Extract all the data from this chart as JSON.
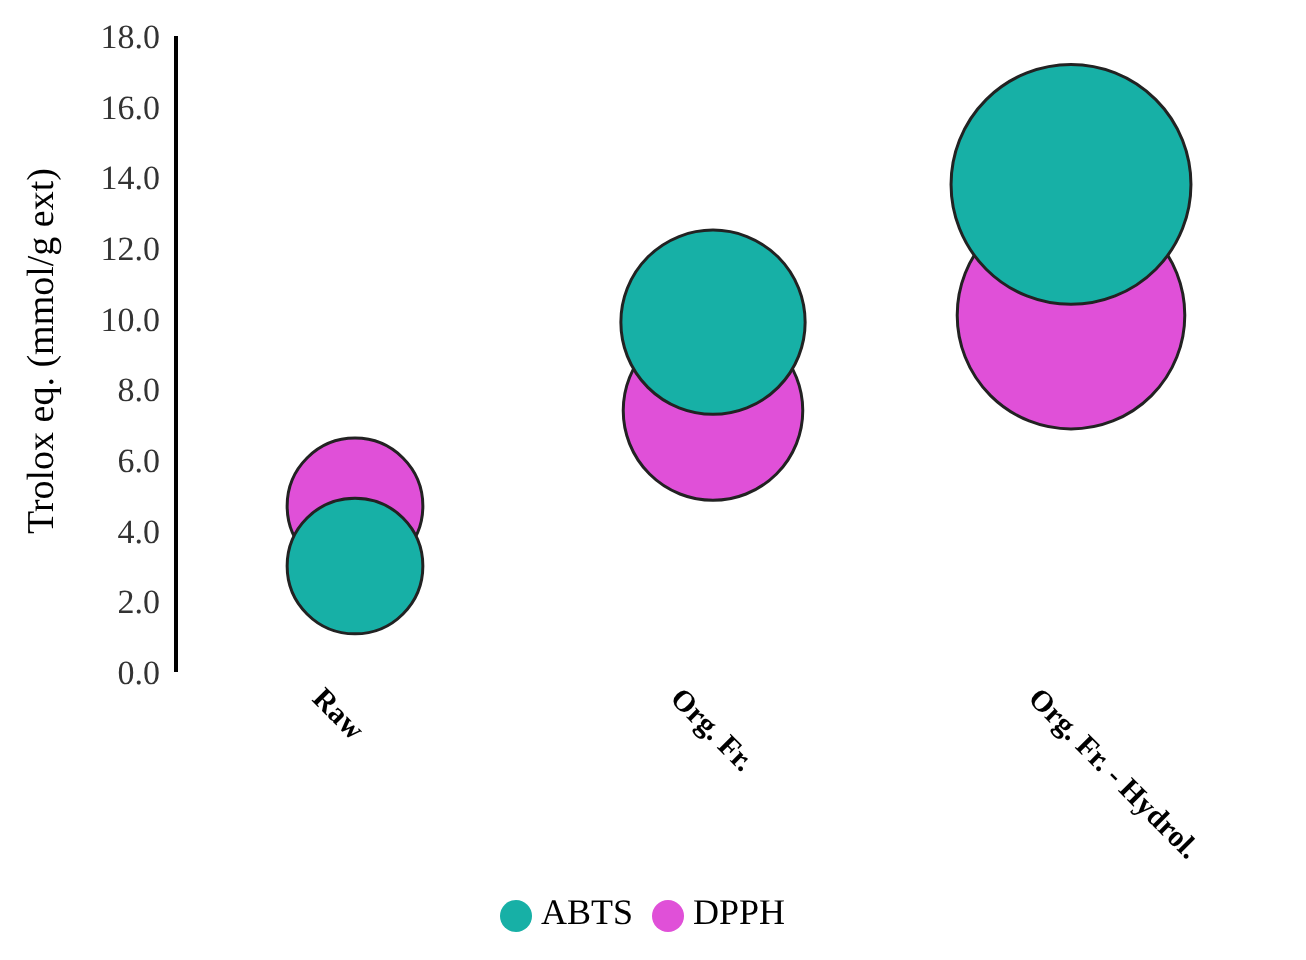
{
  "chart_data": {
    "type": "bubble",
    "ylabel": "Trolox eq. (mmol/g ext)",
    "categories": [
      "Raw",
      "Org. Fr.",
      "Org. Fr. - Hydrol."
    ],
    "series": [
      {
        "name": "DPPH",
        "color": "#e050d8",
        "values": [
          4.7,
          7.4,
          10.1
        ],
        "sizes": [
          0.32,
          0.56,
          0.9
        ]
      },
      {
        "name": "ABTS",
        "color": "#17b0a6",
        "values": [
          3.0,
          9.9,
          13.8
        ],
        "sizes": [
          0.32,
          0.59,
          1
        ]
      }
    ],
    "ylim": [
      0,
      18
    ],
    "yticks": [
      {
        "value": 0,
        "label": "0.0"
      },
      {
        "value": 2,
        "label": "2.0"
      },
      {
        "value": 4,
        "label": "4.0"
      },
      {
        "value": 6,
        "label": "6.0"
      },
      {
        "value": 8,
        "label": "8.0"
      },
      {
        "value": 10,
        "label": "10.0"
      },
      {
        "value": 12,
        "label": "12.0"
      },
      {
        "value": 14,
        "label": "14.0"
      },
      {
        "value": 16,
        "label": "16.0"
      },
      {
        "value": 18,
        "label": "18.0"
      }
    ],
    "grid": false,
    "legend": "bottom"
  }
}
